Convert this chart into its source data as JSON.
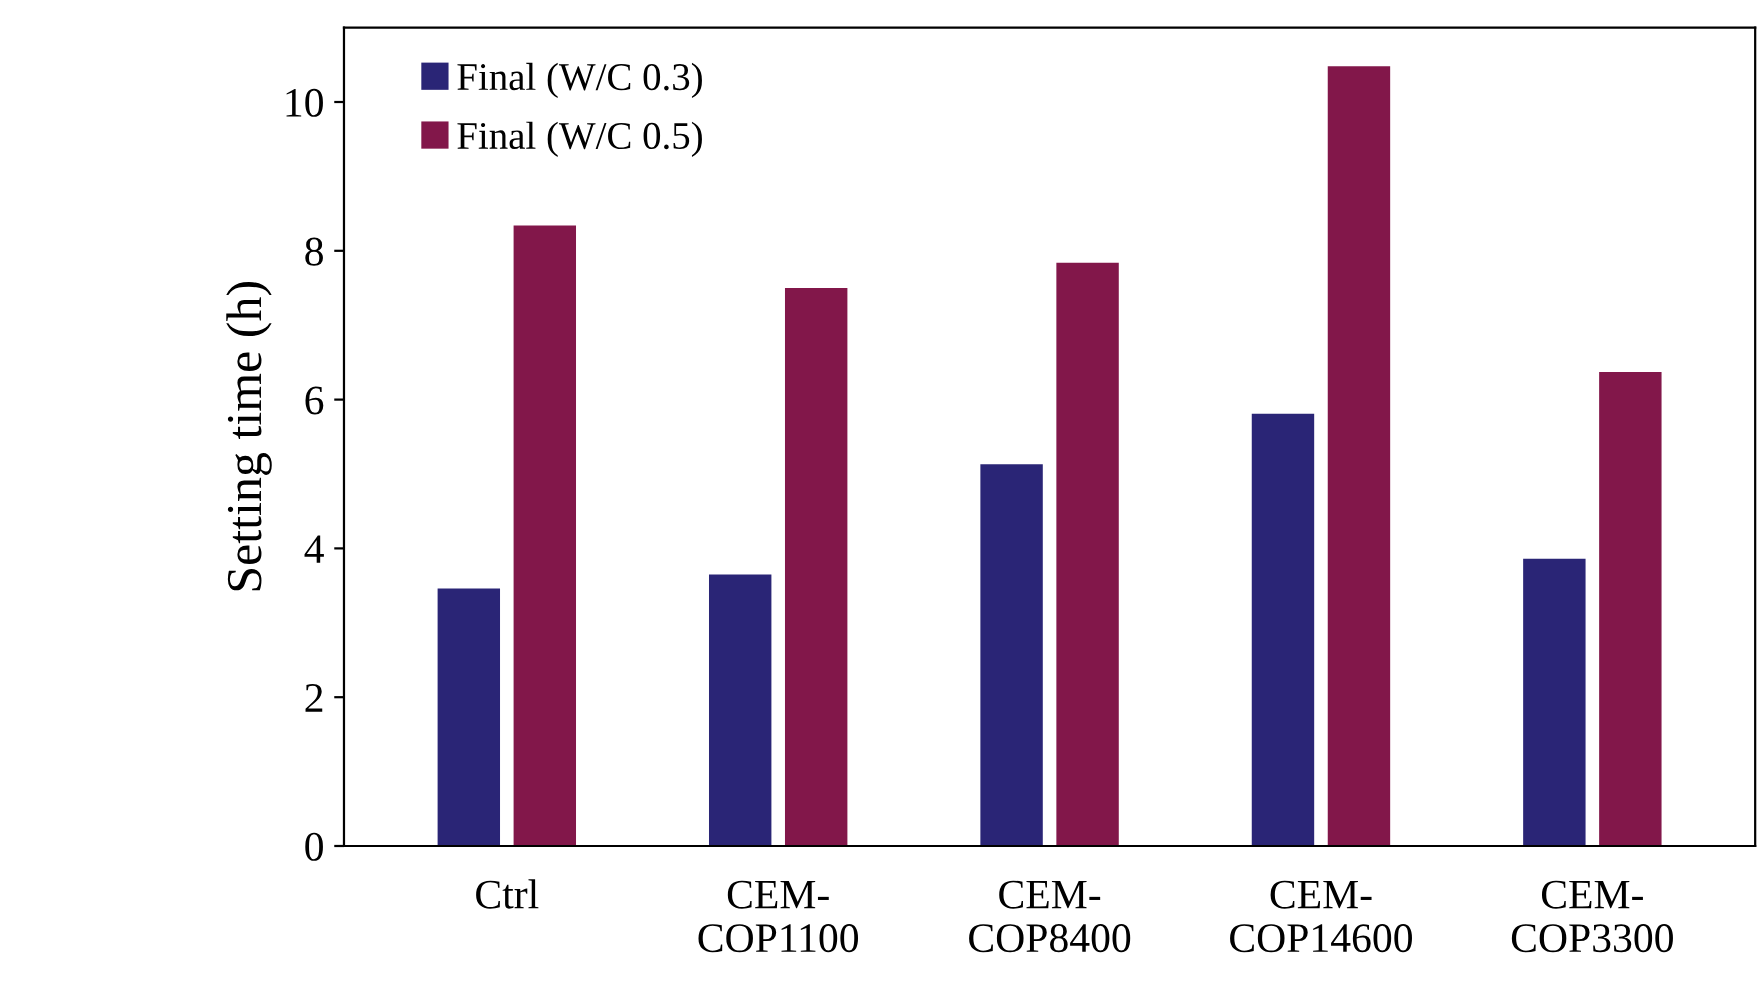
{
  "chart_data": {
    "type": "bar",
    "ylabel": "Setting time (h)",
    "categories": [
      "Ctrl",
      "CEM-\nCOP1100",
      "CEM-\nCOP8400",
      "CEM-\nCOP14600",
      "CEM-\nCOP3300"
    ],
    "series": [
      {
        "name": "Final (W/C 0.3)",
        "color": "#2a2576",
        "values": [
          3.46,
          3.65,
          5.13,
          5.81,
          3.86
        ]
      },
      {
        "name": "Final (W/C 0.5)",
        "color": "#82174a",
        "values": [
          8.34,
          7.5,
          7.84,
          10.48,
          6.37
        ]
      }
    ],
    "ylim": [
      0,
      11
    ],
    "yticks": [
      0,
      2,
      4,
      6,
      8,
      10
    ],
    "grid": false,
    "legend": "top left"
  }
}
